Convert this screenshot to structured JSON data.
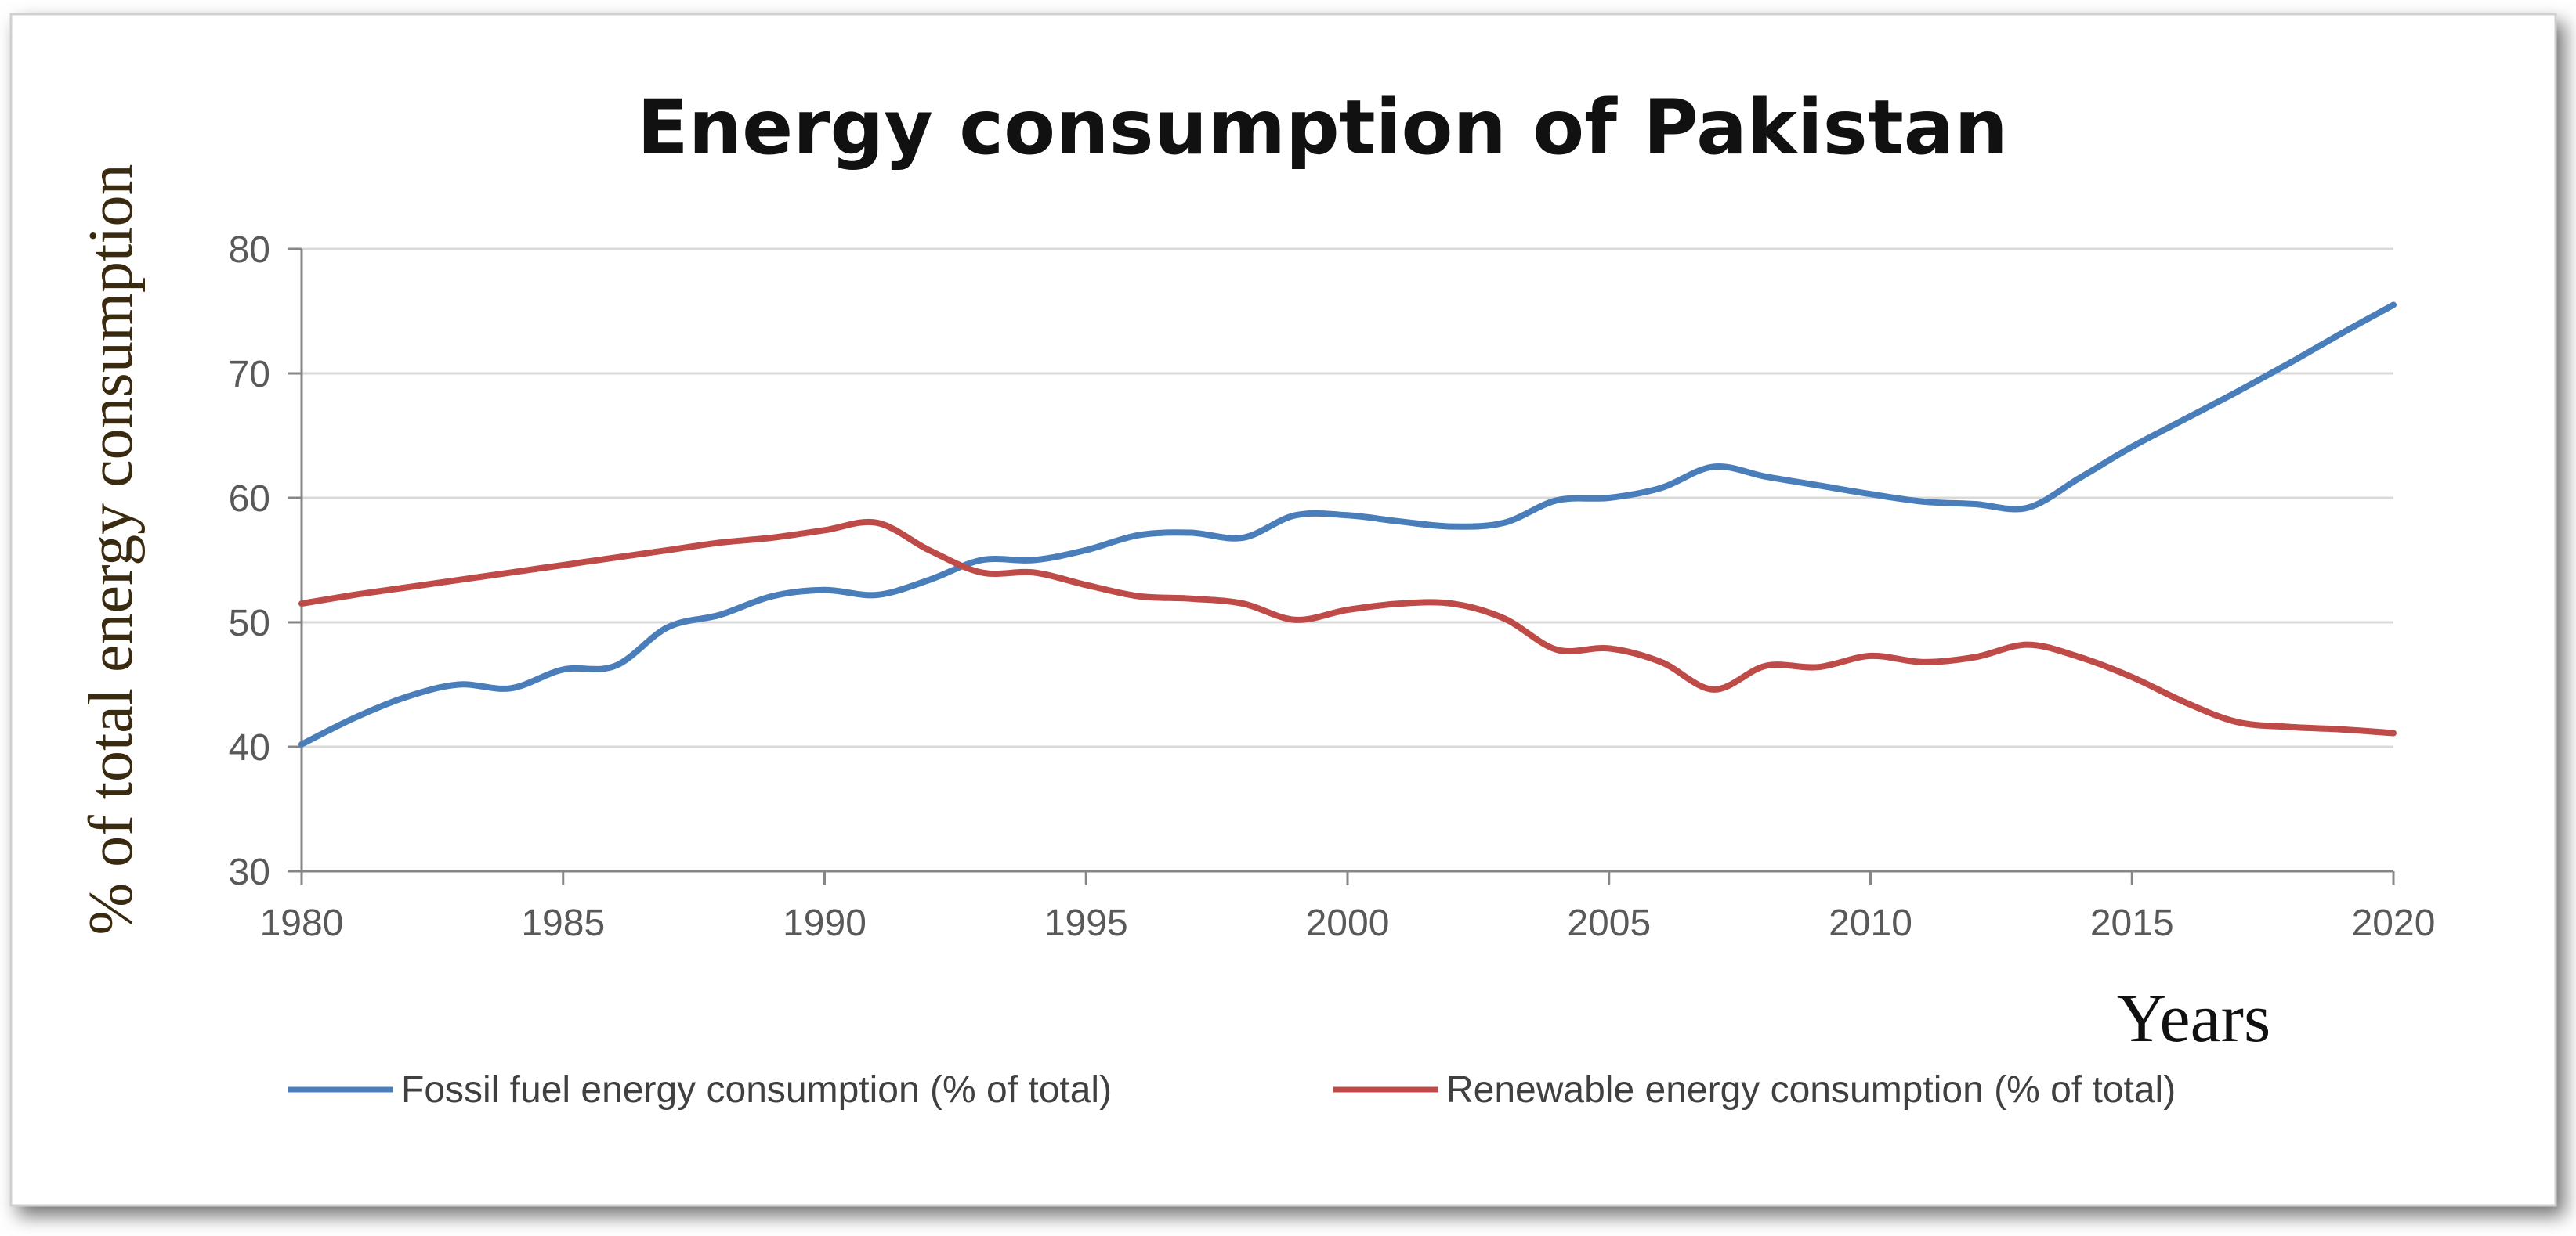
{
  "chart_data": {
    "type": "line",
    "title": "Energy consumption of Pakistan",
    "xlabel": "Years",
    "ylabel": "% of total energy consumption",
    "xlim": [
      1980,
      2020
    ],
    "ylim": [
      30,
      80
    ],
    "x_ticks": [
      1980,
      1985,
      1990,
      1995,
      2000,
      2005,
      2010,
      2015,
      2020
    ],
    "y_ticks": [
      30,
      40,
      50,
      60,
      70,
      80
    ],
    "grid": true,
    "legend_position": "bottom",
    "x": [
      1980,
      1981,
      1982,
      1983,
      1984,
      1985,
      1986,
      1987,
      1988,
      1989,
      1990,
      1991,
      1992,
      1993,
      1994,
      1995,
      1996,
      1997,
      1998,
      1999,
      2000,
      2001,
      2002,
      2003,
      2004,
      2005,
      2006,
      2007,
      2008,
      2009,
      2010,
      2011,
      2012,
      2013,
      2014,
      2015,
      2016,
      2017,
      2018,
      2019,
      2020
    ],
    "series": [
      {
        "name": "Fossil fuel energy consumption (% of total)",
        "color": "#4a7ebb",
        "values": [
          40.2,
          42.3,
          44.0,
          45.0,
          44.7,
          46.2,
          46.5,
          49.6,
          50.6,
          52.1,
          52.6,
          52.2,
          53.4,
          55.0,
          55.0,
          55.8,
          57.0,
          57.2,
          56.8,
          58.6,
          58.6,
          58.1,
          57.7,
          58.0,
          59.8,
          60.0,
          60.8,
          62.5,
          61.7,
          61.0,
          60.3,
          59.7,
          59.5,
          59.2,
          61.6,
          64.1,
          66.3,
          68.5,
          70.8,
          73.2,
          75.5
        ]
      },
      {
        "name": "Renewable energy consumption (% of total)",
        "color": "#be4b48",
        "values": [
          51.5,
          52.2,
          52.8,
          53.4,
          54.0,
          54.6,
          55.2,
          55.8,
          56.4,
          56.8,
          57.4,
          58.0,
          55.8,
          54.0,
          54.0,
          53.0,
          52.1,
          51.9,
          51.5,
          50.2,
          51.0,
          51.5,
          51.5,
          50.3,
          47.8,
          47.9,
          46.8,
          44.6,
          46.5,
          46.4,
          47.3,
          46.8,
          47.2,
          48.2,
          47.2,
          45.6,
          43.6,
          42.0,
          41.6,
          41.4,
          41.1
        ]
      }
    ]
  }
}
